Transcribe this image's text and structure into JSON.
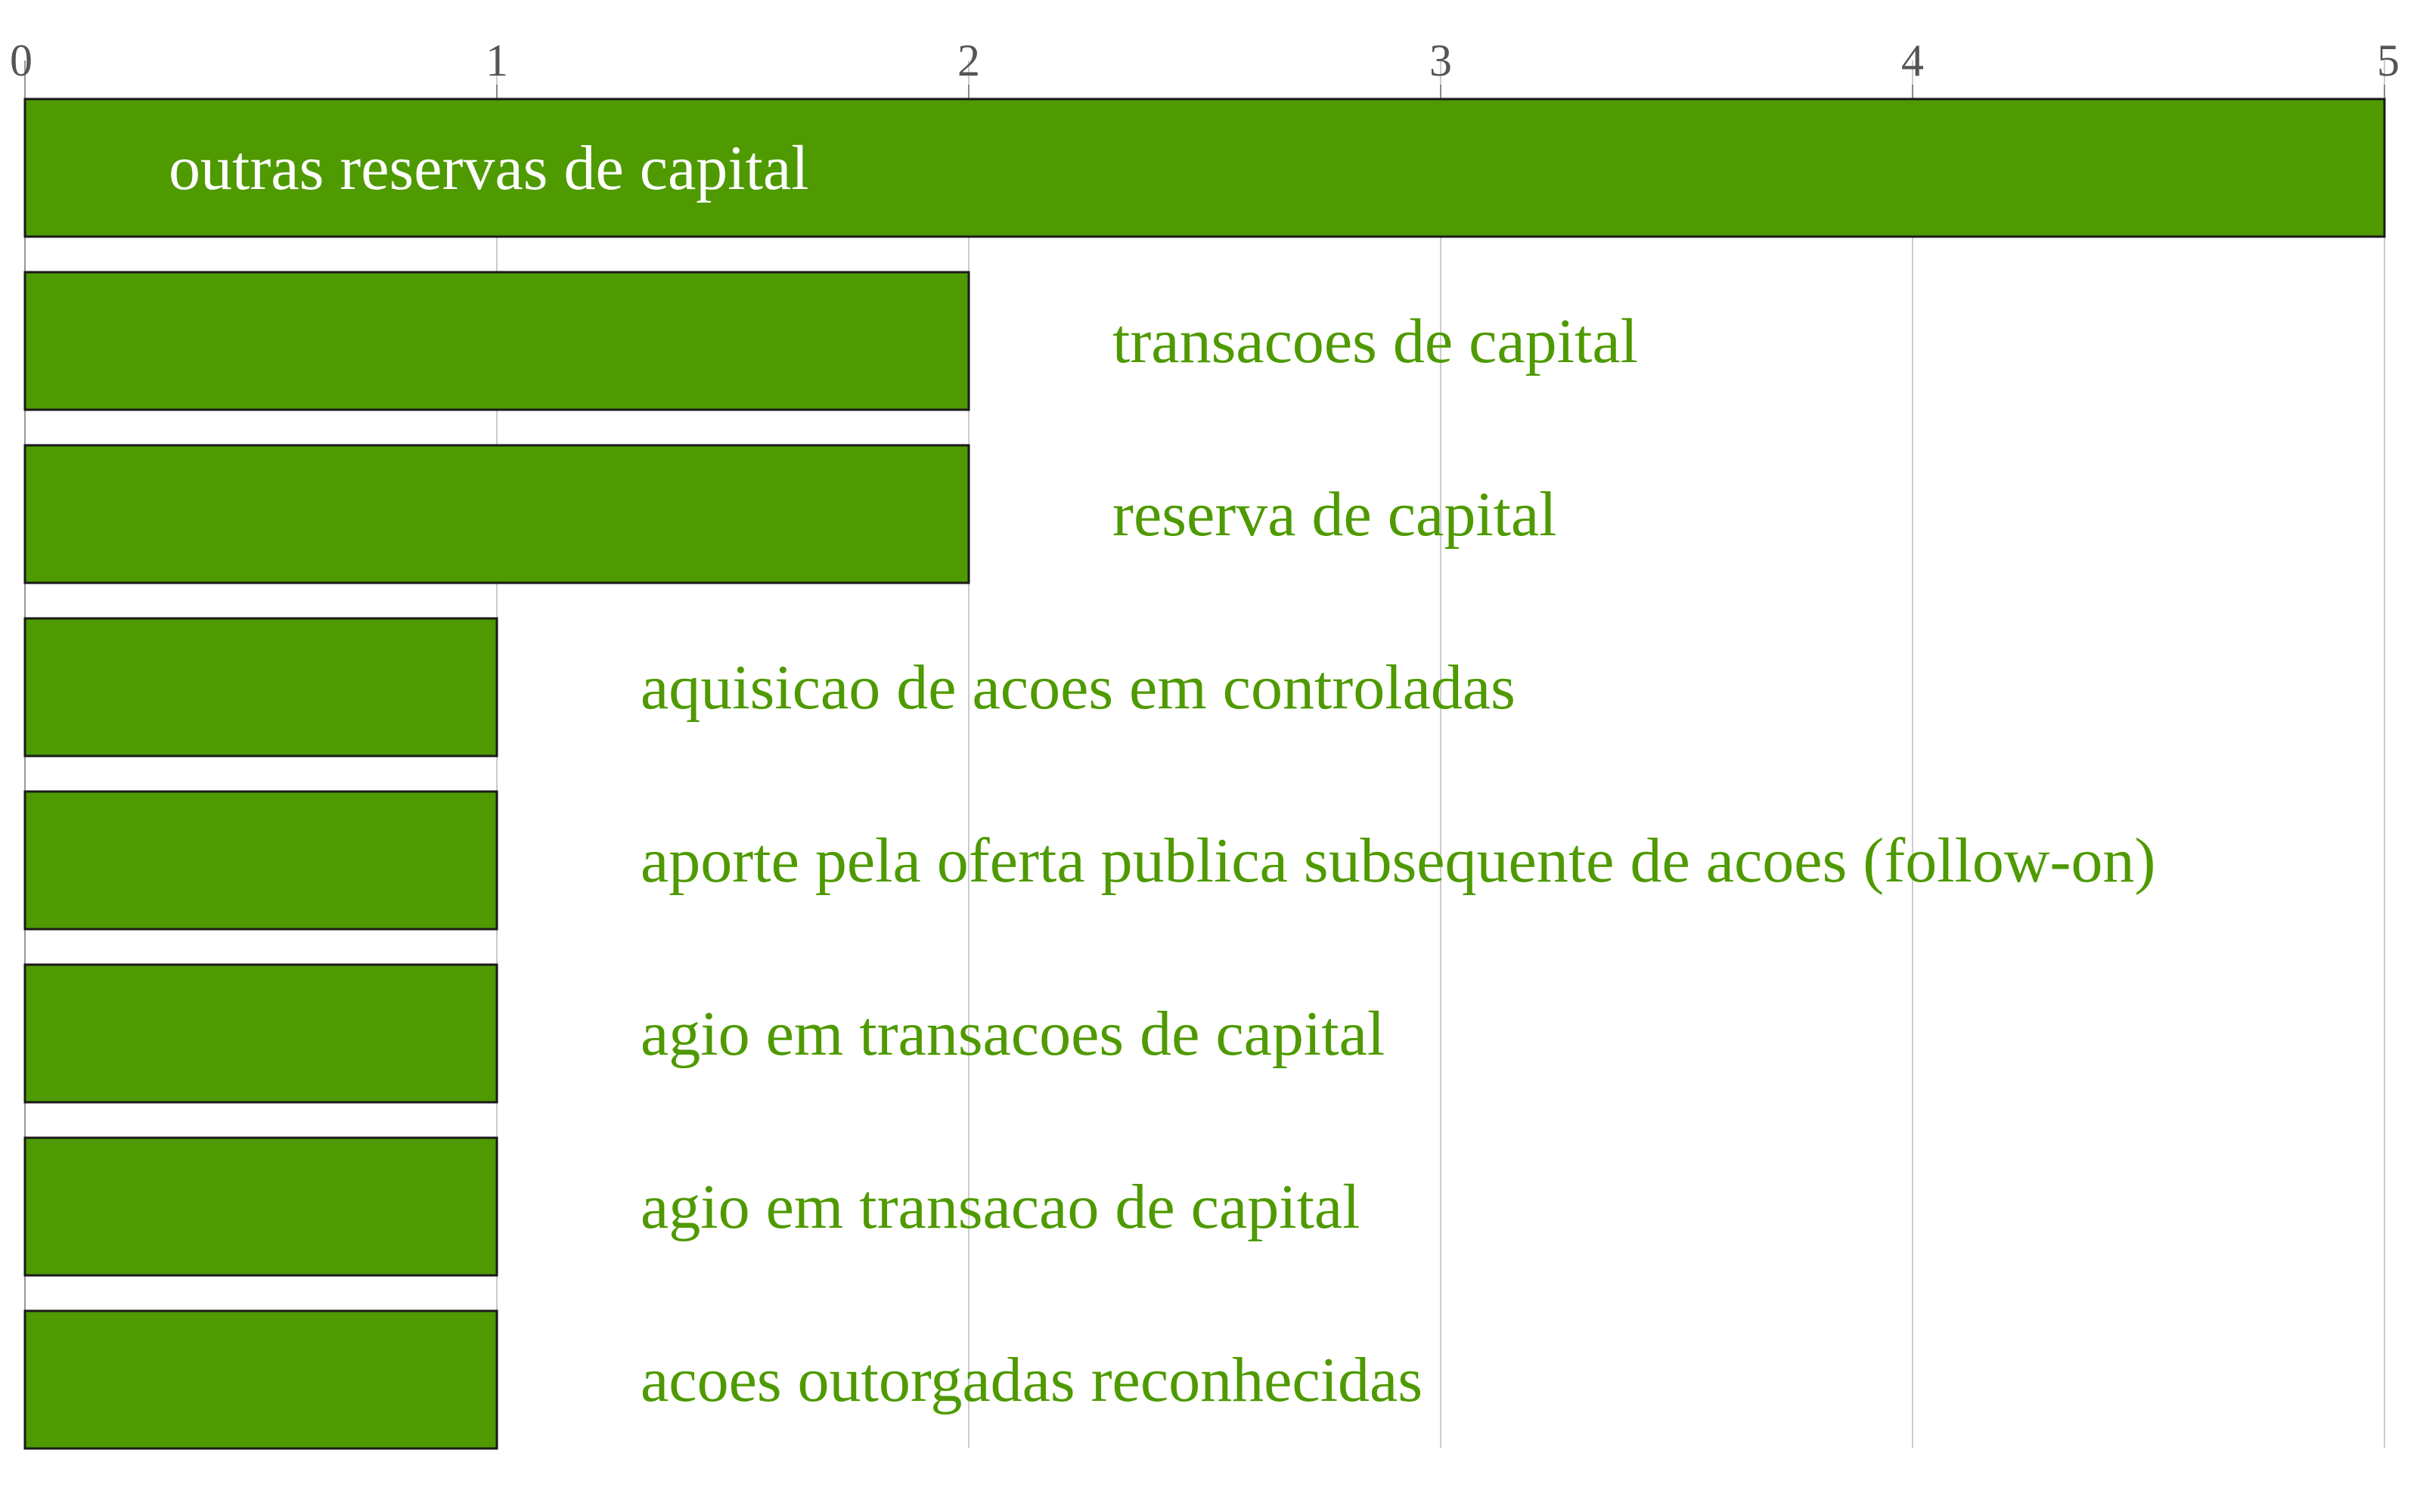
{
  "chart_data": {
    "type": "bar",
    "orientation": "horizontal",
    "categories": [
      "outras reservas de capital",
      "transacoes de capital",
      "reserva de capital",
      "aquisicao de acoes em controladas",
      "aporte pela oferta publica subsequente de acoes (follow-on)",
      "agio em transacoes de capital",
      "agio em transacao de capital",
      "acoes outorgadas reconhecidas"
    ],
    "values": [
      5,
      2,
      2,
      1,
      1,
      1,
      1,
      1
    ],
    "xlim": [
      0,
      5
    ],
    "x_ticks": [
      "0",
      "1",
      "2",
      "3",
      "4",
      "5"
    ],
    "axis_position": "top",
    "grid": true,
    "bar_color": "#4e9a00",
    "label_color": "#4e9a00",
    "inside_label_color": "#ffffff",
    "grid_color": "#cccccc",
    "title": "",
    "xlabel": "",
    "ylabel": ""
  }
}
